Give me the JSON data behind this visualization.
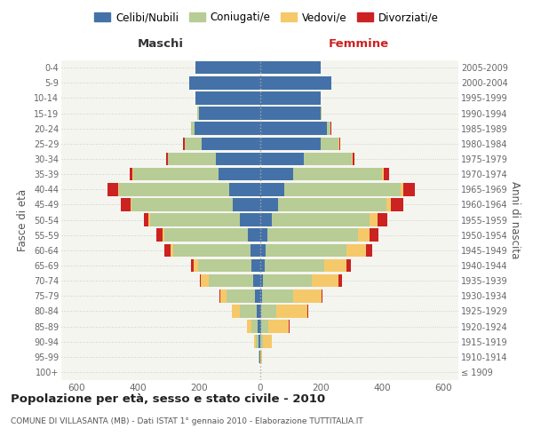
{
  "age_groups": [
    "100+",
    "95-99",
    "90-94",
    "85-89",
    "80-84",
    "75-79",
    "70-74",
    "65-69",
    "60-64",
    "55-59",
    "50-54",
    "45-49",
    "40-44",
    "35-39",
    "30-34",
    "25-29",
    "20-24",
    "15-19",
    "10-14",
    "5-9",
    "0-4"
  ],
  "birth_years": [
    "≤ 1909",
    "1910-1914",
    "1915-1919",
    "1920-1924",
    "1925-1929",
    "1930-1934",
    "1935-1939",
    "1940-1944",
    "1945-1949",
    "1950-1954",
    "1955-1959",
    "1960-1964",
    "1965-1969",
    "1970-1974",
    "1975-1979",
    "1980-1984",
    "1985-1989",
    "1990-1994",
    "1995-1999",
    "2000-2004",
    "2005-2009"
  ],
  "maschi_celibi": [
    0,
    1,
    3,
    6,
    10,
    15,
    22,
    28,
    30,
    38,
    65,
    90,
    100,
    135,
    145,
    190,
    215,
    200,
    210,
    230,
    210
  ],
  "maschi_coniugati": [
    0,
    2,
    10,
    22,
    55,
    95,
    145,
    175,
    255,
    275,
    295,
    330,
    360,
    280,
    155,
    55,
    10,
    4,
    0,
    0,
    0
  ],
  "maschi_vedovi": [
    0,
    2,
    5,
    15,
    28,
    18,
    25,
    15,
    8,
    5,
    5,
    4,
    4,
    2,
    2,
    2,
    0,
    0,
    0,
    0,
    0
  ],
  "maschi_divorziati": [
    0,
    0,
    0,
    0,
    0,
    5,
    3,
    8,
    20,
    22,
    15,
    30,
    35,
    8,
    5,
    5,
    0,
    0,
    0,
    0,
    0
  ],
  "femmine_celibi": [
    0,
    0,
    2,
    4,
    5,
    8,
    10,
    15,
    20,
    25,
    40,
    60,
    80,
    110,
    145,
    200,
    220,
    198,
    200,
    235,
    200
  ],
  "femmine_coniugati": [
    0,
    2,
    8,
    25,
    50,
    100,
    160,
    195,
    265,
    295,
    320,
    355,
    380,
    290,
    155,
    58,
    10,
    3,
    0,
    0,
    0
  ],
  "femmine_vedovi": [
    0,
    5,
    28,
    65,
    100,
    95,
    88,
    75,
    62,
    40,
    25,
    15,
    10,
    7,
    4,
    3,
    2,
    0,
    0,
    0,
    0
  ],
  "femmine_divorziati": [
    0,
    0,
    0,
    2,
    3,
    3,
    10,
    12,
    20,
    28,
    32,
    40,
    38,
    15,
    5,
    3,
    3,
    0,
    0,
    0,
    0
  ],
  "color_celibi": "#4472a8",
  "color_coniugati": "#b8cc96",
  "color_vedovi": "#f5c96a",
  "color_divorziati": "#cc2222",
  "xlim": 650,
  "title": "Popolazione per età, sesso e stato civile - 2010",
  "subtitle": "COMUNE DI VILLASANTA (MB) - Dati ISTAT 1° gennaio 2010 - Elaborazione TUTTITALIA.IT",
  "ylabel": "Fasce di età",
  "ylabel_right": "Anni di nascita",
  "label_maschi": "Maschi",
  "label_femmine": "Femmine",
  "legend_celibi": "Celibi/Nubili",
  "legend_coniugati": "Coniugati/e",
  "legend_vedovi": "Vedovi/e",
  "legend_divorziati": "Divorziati/e",
  "bg_color": "#f5f5f0"
}
